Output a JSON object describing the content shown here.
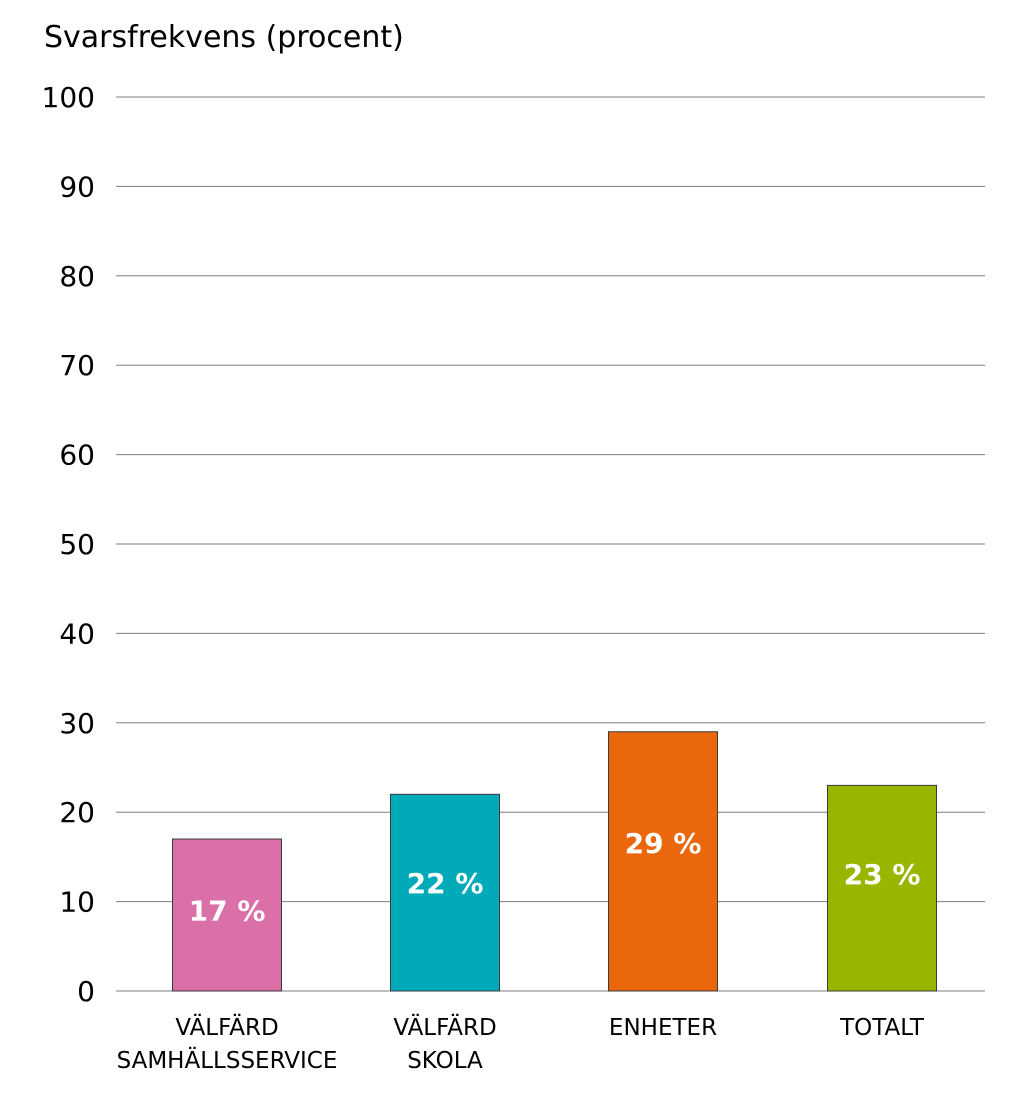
{
  "chart_data": {
    "type": "bar",
    "ylabel": "Svarsfrekvens (procent)",
    "ylim": [
      0,
      100
    ],
    "yticks": [
      0,
      10,
      20,
      30,
      40,
      50,
      60,
      70,
      80,
      90,
      100
    ],
    "grid": true,
    "categories": [
      [
        "VÄLFÄRD",
        "SAMHÄLLSSERVICE"
      ],
      [
        "VÄLFÄRD",
        "SKOLA"
      ],
      [
        "ENHETER"
      ],
      [
        "TOTALT"
      ]
    ],
    "values": [
      17,
      22,
      29,
      23
    ],
    "data_labels": [
      "17 %",
      "22 %",
      "29 %",
      "23 %"
    ],
    "colors": [
      "#db6fa8",
      "#00aab8",
      "#ea670d",
      "#99b500"
    ]
  }
}
